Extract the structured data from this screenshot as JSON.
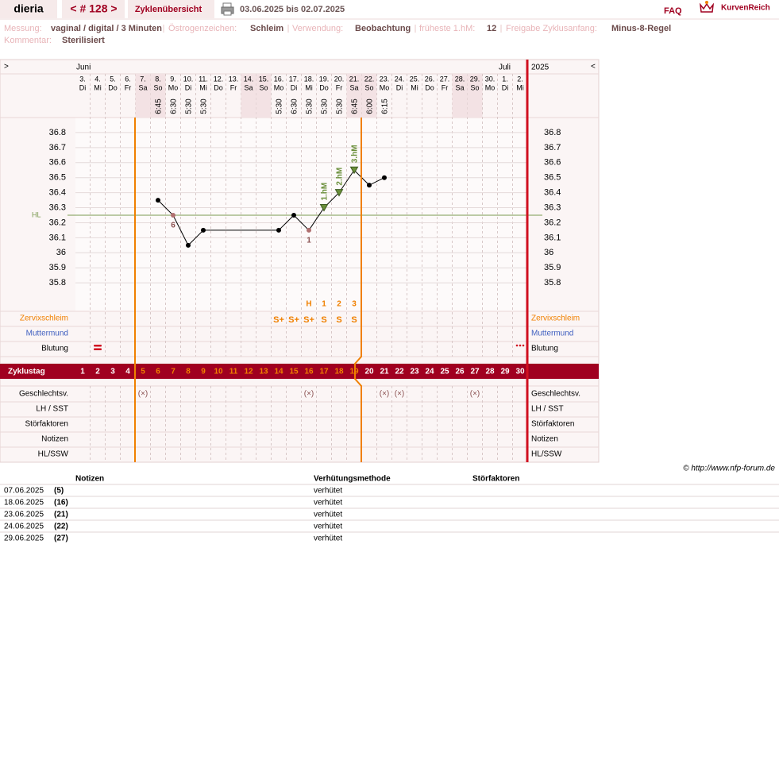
{
  "header": {
    "user": "dieria",
    "cycle": "< # 128 >",
    "overview": "Zyklenübersicht",
    "period": "03.06.2025 bis 02.07.2025",
    "faq": "FAQ",
    "brand": "KurvenReich"
  },
  "info": {
    "lines": [
      [
        {
          "label": "Messung:",
          "value": "vaginal / digital / 3 Minuten"
        },
        {
          "label": "Östrogenzeichen:",
          "value": "Schleim"
        },
        {
          "label": "Verwendung:",
          "value": "Beobachtung"
        },
        {
          "label": "früheste 1.hM:",
          "value": "12"
        },
        {
          "label": "Freigabe Zyklusanfang:",
          "value": "Minus-8-Regel"
        }
      ],
      [
        {
          "label": "Kommentar:",
          "value": "Sterilisiert"
        }
      ]
    ]
  },
  "chart_data": {
    "type": "line",
    "nav": {
      "prev": ">",
      "next": "<"
    },
    "months": [
      "Juni",
      "Juli"
    ],
    "year": "2025",
    "dates": [
      "3.",
      "4.",
      "5.",
      "6.",
      "7.",
      "8.",
      "9.",
      "10.",
      "11.",
      "12.",
      "13.",
      "14.",
      "15.",
      "16.",
      "17.",
      "18.",
      "19.",
      "20.",
      "21.",
      "22.",
      "23.",
      "24.",
      "25.",
      "26.",
      "27.",
      "28.",
      "29.",
      "30.",
      "1.",
      "2."
    ],
    "weekdays": [
      "Di",
      "Mi",
      "Do",
      "Fr",
      "Sa",
      "So",
      "Mo",
      "Di",
      "Mi",
      "Do",
      "Fr",
      "Sa",
      "So",
      "Mo",
      "Di",
      "Mi",
      "Do",
      "Fr",
      "Sa",
      "So",
      "Mo",
      "Di",
      "Mi",
      "Do",
      "Fr",
      "Sa",
      "So",
      "Mo",
      "Di",
      "Mi"
    ],
    "times": [
      null,
      null,
      null,
      null,
      null,
      "6:45",
      "6:30",
      "5:30",
      "5:30",
      null,
      null,
      null,
      null,
      "5:30",
      "6:30",
      "5:30",
      "5:30",
      "5:30",
      "6:45",
      "6:00",
      "6:15",
      null,
      null,
      null,
      null,
      null,
      null,
      null,
      null,
      null
    ],
    "cycle_day_label": "Zyklustag",
    "cycle_days": [
      1,
      2,
      3,
      4,
      5,
      6,
      7,
      8,
      9,
      10,
      11,
      12,
      13,
      14,
      15,
      16,
      17,
      18,
      19,
      20,
      21,
      22,
      23,
      24,
      25,
      26,
      27,
      28,
      29,
      30
    ],
    "ylim": [
      35.6,
      36.9
    ],
    "yticks": [
      35.8,
      35.9,
      36,
      36.1,
      36.2,
      36.3,
      36.4,
      36.5,
      36.6,
      36.7,
      36.8
    ],
    "grid": true,
    "series": [
      {
        "color": "#000000",
        "x": [
          6,
          7,
          8,
          9,
          14,
          15,
          16,
          17,
          18,
          19,
          20,
          21
        ],
        "values": [
          36.35,
          36.25,
          36.05,
          36.15,
          36.15,
          36.25,
          36.15,
          36.3,
          36.4,
          36.55,
          36.45,
          36.5
        ],
        "markers": [
          "dot",
          "excluded",
          "dot",
          "dot",
          "dot",
          "dot",
          "excluded",
          "high",
          "high",
          "high",
          "dot",
          "dot"
        ],
        "point_labels": [
          null,
          "6",
          null,
          null,
          null,
          null,
          "1",
          null,
          null,
          null,
          null,
          null
        ],
        "shift_labels": [
          null,
          null,
          null,
          null,
          null,
          null,
          null,
          "1.hM",
          "2.hM",
          "3.hM",
          null,
          null
        ]
      }
    ],
    "cover_line": {
      "label": "HL",
      "value": 36.25,
      "color": "#7a9a50"
    },
    "rows": [
      "Zervixschleim",
      "Muttermund",
      "Blutung",
      "Geschlechtsv.",
      "LH / SST",
      "Störfaktoren",
      "Notizen",
      "HL/SSW"
    ],
    "mucus": [
      null,
      null,
      null,
      null,
      null,
      null,
      null,
      null,
      null,
      null,
      null,
      null,
      null,
      "S+",
      "S+",
      "S+",
      "S",
      "S",
      "S",
      null,
      null,
      null,
      null,
      null,
      null,
      null,
      null,
      null,
      null,
      null
    ],
    "mucus_peak": [
      null,
      null,
      null,
      null,
      null,
      null,
      null,
      null,
      null,
      null,
      null,
      null,
      null,
      null,
      null,
      "H",
      "1",
      "2",
      "3",
      null,
      null,
      null,
      null,
      null,
      null,
      null,
      null,
      null,
      null,
      null
    ],
    "intercourse": [
      null,
      null,
      null,
      null,
      "(×)",
      null,
      null,
      null,
      null,
      null,
      null,
      null,
      null,
      null,
      null,
      "(×)",
      null,
      null,
      null,
      null,
      "(×)",
      "(×)",
      null,
      null,
      null,
      null,
      "(×)",
      null,
      null,
      null
    ]
  },
  "copyright": "© http://www.nfp-forum.de",
  "notes": {
    "columns": [
      "Notizen",
      "Verhütungsmethode",
      "Störfaktoren"
    ],
    "rows": [
      [
        "07.06.2025",
        "(5)",
        "verhütet"
      ],
      [
        "18.06.2025",
        "(16)",
        "verhütet"
      ],
      [
        "23.06.2025",
        "(21)",
        "verhütet"
      ],
      [
        "24.06.2025",
        "(22)",
        "verhütet"
      ],
      [
        "29.06.2025",
        "(27)",
        "verhütet"
      ]
    ]
  }
}
